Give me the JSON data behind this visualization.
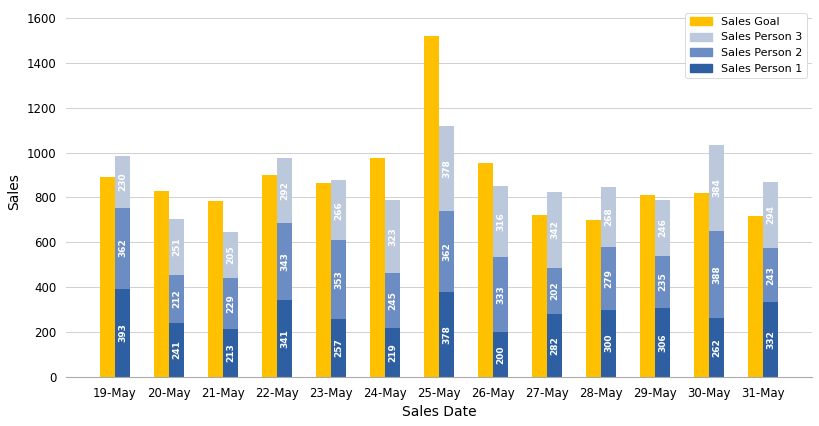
{
  "dates": [
    "19-May",
    "20-May",
    "21-May",
    "22-May",
    "23-May",
    "24-May",
    "25-May",
    "26-May",
    "27-May",
    "28-May",
    "29-May",
    "30-May",
    "31-May"
  ],
  "sales_goal": [
    893,
    831,
    784,
    900,
    863,
    975,
    1519,
    955,
    722,
    700,
    813,
    820,
    716
  ],
  "sp1": [
    393,
    241,
    213,
    341,
    257,
    219,
    378,
    200,
    282,
    300,
    306,
    262,
    332
  ],
  "sp2": [
    362,
    212,
    229,
    343,
    353,
    245,
    362,
    333,
    202,
    279,
    235,
    388,
    243
  ],
  "sp3": [
    230,
    251,
    205,
    292,
    266,
    323,
    378,
    316,
    342,
    268,
    246,
    384,
    294
  ],
  "color_goal": "#FFC000",
  "color_sp1": "#2E5FA3",
  "color_sp2": "#6B8DC4",
  "color_sp3": "#BCC8DC",
  "xlabel": "Sales Date",
  "ylabel": "Sales",
  "ylim": [
    0,
    1650
  ],
  "yticks": [
    0,
    200,
    400,
    600,
    800,
    1000,
    1200,
    1400,
    1600
  ],
  "bar_width": 0.28,
  "label_fontsize": 6.5,
  "axis_fontsize": 10,
  "tick_fontsize": 8.5
}
